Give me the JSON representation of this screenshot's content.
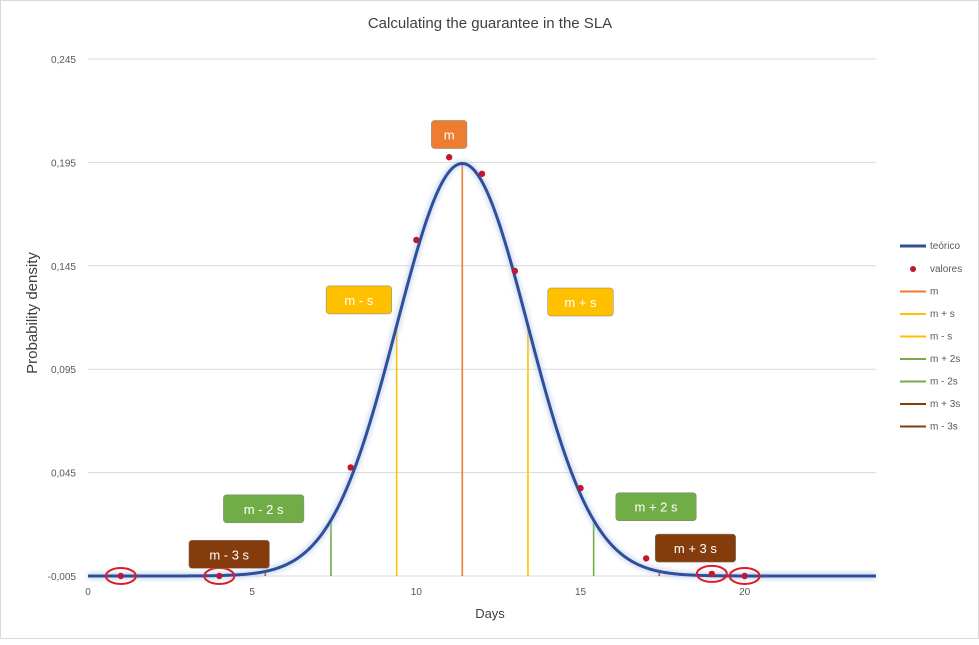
{
  "chart_data": {
    "type": "line",
    "title": "Calculating the guarantee in the SLA",
    "xlabel": "Days",
    "ylabel": "Probability density",
    "xlim": [
      0,
      24
    ],
    "ylim": [
      -0.005,
      0.245
    ],
    "x_ticks": [
      {
        "value": 0,
        "label": "0"
      },
      {
        "value": 5,
        "label": "5"
      },
      {
        "value": 10,
        "label": "10"
      },
      {
        "value": 15,
        "label": "15"
      },
      {
        "value": 20,
        "label": "20"
      }
    ],
    "y_ticks": [
      {
        "value": -0.005,
        "label": "-0,005"
      },
      {
        "value": 0.045,
        "label": "0,045"
      },
      {
        "value": 0.095,
        "label": "0,095"
      },
      {
        "value": 0.145,
        "label": "0,145"
      },
      {
        "value": 0.195,
        "label": "0,195"
      },
      {
        "value": 0.245,
        "label": "0,245"
      }
    ],
    "grid": "horizontal",
    "legend_position": "right",
    "series": [
      {
        "name": "teórico",
        "kind": "curve",
        "color": "#2f4f9a",
        "mean": 11.4,
        "sd": 2.0,
        "baseline": -0.005,
        "x_range": [
          0,
          24
        ]
      },
      {
        "name": "valores",
        "kind": "points",
        "color": "#c0182e",
        "x": [
          1,
          4,
          8,
          10,
          11,
          12,
          13,
          15,
          17,
          19,
          20
        ],
        "y": [
          -0.005,
          -0.005,
          0.0475,
          0.1575,
          0.1975,
          0.1895,
          0.1425,
          0.0375,
          0.0035,
          -0.004,
          -0.005
        ]
      }
    ],
    "markers": [
      {
        "legend": "m",
        "x": 11.4,
        "color": "#ed7d31",
        "box_label": "m",
        "box_x": 11.0,
        "box_y": 0.2085
      },
      {
        "legend": "m + s",
        "x": 13.4,
        "color": "#ffc000",
        "box_label": "m + s",
        "box_x": 15.0,
        "box_y": 0.1275
      },
      {
        "legend": "m - s",
        "x": 9.4,
        "color": "#ffc000",
        "box_label": "m - s",
        "box_x": 8.25,
        "box_y": 0.1285
      },
      {
        "legend": "m + 2s",
        "x": 15.4,
        "color": "#70ad47",
        "box_label": "m + 2 s",
        "box_x": 17.3,
        "box_y": 0.0285
      },
      {
        "legend": "m - 2s",
        "x": 7.4,
        "color": "#70ad47",
        "box_label": "m - 2 s",
        "box_x": 5.35,
        "box_y": 0.0275
      },
      {
        "legend": "m + 3s",
        "x": 17.4,
        "color": "#843c0c",
        "box_label": "m + 3 s",
        "box_x": 18.5,
        "box_y": 0.0085
      },
      {
        "legend": "m - 3s",
        "x": 5.4,
        "color": "#843c0c",
        "box_label": "m - 3 s",
        "box_x": 4.3,
        "box_y": 0.0055
      }
    ],
    "highlight_circles": [
      {
        "x": 1,
        "y": -0.005
      },
      {
        "x": 4,
        "y": -0.005
      },
      {
        "x": 19,
        "y": -0.004
      },
      {
        "x": 20,
        "y": -0.005
      }
    ]
  }
}
